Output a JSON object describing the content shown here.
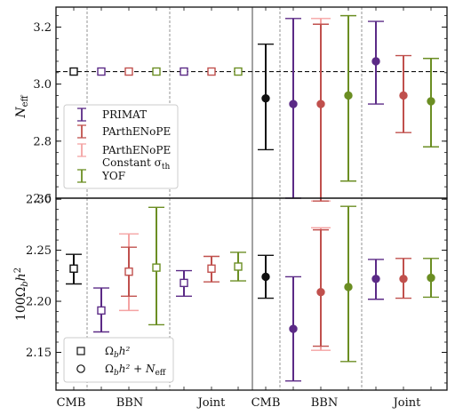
{
  "chart_data": [
    {
      "type": "errorbar",
      "panel": "top",
      "ylabel": "N_eff",
      "ylim": [
        2.6,
        3.27
      ],
      "yticks": [
        "2.6",
        "2.8",
        "3.0",
        "3.2"
      ],
      "reference_line": 3.044,
      "colors": {
        "CMB": "#111111",
        "PRIMAT": "#5b2a86",
        "PArthENoPE": "#c0504d",
        "PArthENoPE_const": "#f08080",
        "YOF": "#6b8e23"
      },
      "legend": {
        "position": "lower-left",
        "entries": [
          {
            "label": "PRIMAT",
            "color_key": "PRIMAT"
          },
          {
            "label": "PArthENoPE",
            "color_key": "PArthENoPE"
          },
          {
            "label": "PArthENoPE",
            "label2": "Constant σ",
            "label2_sub": "th",
            "color_key": "PArthENoPE_const"
          },
          {
            "label": "YOF",
            "color_key": "YOF"
          }
        ]
      },
      "series": [
        {
          "group": "CMB",
          "model": "CMB",
          "marker": "square-open",
          "y": 3.044,
          "err_low": 0,
          "err_high": 0
        },
        {
          "group": "BBN",
          "model": "PRIMAT",
          "marker": "square-open",
          "y": 3.044,
          "err_low": 0,
          "err_high": 0
        },
        {
          "group": "BBN",
          "model": "PArthENoPE",
          "marker": "square-open",
          "y": 3.044,
          "err_low": 0,
          "err_high": 0
        },
        {
          "group": "BBN",
          "model": "YOF",
          "marker": "square-open",
          "y": 3.044,
          "err_low": 0,
          "err_high": 0
        },
        {
          "group": "Joint",
          "model": "PRIMAT",
          "marker": "square-open",
          "y": 3.044,
          "err_low": 0,
          "err_high": 0
        },
        {
          "group": "Joint",
          "model": "PArthENoPE",
          "marker": "square-open",
          "y": 3.044,
          "err_low": 0,
          "err_high": 0
        },
        {
          "group": "Joint",
          "model": "YOF",
          "marker": "square-open",
          "y": 3.044,
          "err_low": 0,
          "err_high": 0
        },
        {
          "group": "CMB",
          "model": "CMB",
          "marker": "circle-filled",
          "y": 2.95,
          "err_low": 0.18,
          "err_high": 0.19
        },
        {
          "group": "BBN",
          "model": "PRIMAT",
          "marker": "circle-filled",
          "y": 2.93,
          "err_low": 0.33,
          "err_high": 0.3
        },
        {
          "group": "BBN",
          "model": "PArthENoPE",
          "marker": "circle-filled",
          "y": 2.93,
          "err_low": 0.34,
          "err_high": 0.28
        },
        {
          "group": "BBN",
          "model": "PArthENoPE_const",
          "marker": "none",
          "y": 2.93,
          "err_low": 0.34,
          "err_high": 0.3
        },
        {
          "group": "BBN",
          "model": "YOF",
          "marker": "circle-filled",
          "y": 2.96,
          "err_low": 0.3,
          "err_high": 0.28
        },
        {
          "group": "Joint",
          "model": "PRIMAT",
          "marker": "circle-filled",
          "y": 3.08,
          "err_low": 0.15,
          "err_high": 0.14
        },
        {
          "group": "Joint",
          "model": "PArthENoPE",
          "marker": "circle-filled",
          "y": 2.96,
          "err_low": 0.13,
          "err_high": 0.14
        },
        {
          "group": "Joint",
          "model": "YOF",
          "marker": "circle-filled",
          "y": 2.94,
          "err_low": 0.16,
          "err_high": 0.15
        }
      ]
    },
    {
      "type": "errorbar",
      "panel": "bottom",
      "ylabel": "100 Ω_b h^2",
      "ylim": [
        2.113,
        2.301
      ],
      "yticks": [
        "2.15",
        "2.20",
        "2.25",
        "2.30"
      ],
      "xticklabels": [
        "CMB",
        "BBN",
        "Joint",
        "CMB",
        "BBN",
        "Joint"
      ],
      "legend": {
        "position": "lower-left",
        "entries": [
          {
            "label": "Ω",
            "label_rest": "h²",
            "sub": "b",
            "marker": "square-open"
          },
          {
            "label": "Ω",
            "label_rest": "h² + N",
            "sub": "b",
            "sub2": "eff",
            "marker": "circle-open"
          }
        ]
      },
      "series": [
        {
          "group": "CMB",
          "model": "CMB",
          "marker": "square-open",
          "y": 2.232,
          "err_low": 0.015,
          "err_high": 0.014
        },
        {
          "group": "BBN",
          "model": "PRIMAT",
          "marker": "square-open",
          "y": 2.191,
          "err_low": 0.021,
          "err_high": 0.022
        },
        {
          "group": "BBN",
          "model": "PArthENoPE",
          "marker": "square-open",
          "y": 2.229,
          "err_low": 0.024,
          "err_high": 0.024
        },
        {
          "group": "BBN",
          "model": "PArthENoPE_const",
          "marker": "none",
          "y": 2.229,
          "err_low": 0.038,
          "err_high": 0.037
        },
        {
          "group": "BBN",
          "model": "YOF",
          "marker": "square-open",
          "y": 2.233,
          "err_low": 0.056,
          "err_high": 0.059
        },
        {
          "group": "Joint",
          "model": "PRIMAT",
          "marker": "square-open",
          "y": 2.218,
          "err_low": 0.013,
          "err_high": 0.012
        },
        {
          "group": "Joint",
          "model": "PArthENoPE",
          "marker": "square-open",
          "y": 2.232,
          "err_low": 0.013,
          "err_high": 0.012
        },
        {
          "group": "Joint",
          "model": "YOF",
          "marker": "square-open",
          "y": 2.234,
          "err_low": 0.014,
          "err_high": 0.014
        },
        {
          "group": "CMB",
          "model": "CMB",
          "marker": "circle-filled",
          "y": 2.224,
          "err_low": 0.021,
          "err_high": 0.021
        },
        {
          "group": "BBN",
          "model": "PRIMAT",
          "marker": "circle-filled",
          "y": 2.173,
          "err_low": 0.051,
          "err_high": 0.051
        },
        {
          "group": "BBN",
          "model": "PArthENoPE",
          "marker": "circle-filled",
          "y": 2.209,
          "err_low": 0.053,
          "err_high": 0.061
        },
        {
          "group": "BBN",
          "model": "PArthENoPE_const",
          "marker": "none",
          "y": 2.209,
          "err_low": 0.057,
          "err_high": 0.063
        },
        {
          "group": "BBN",
          "model": "YOF",
          "marker": "circle-filled",
          "y": 2.214,
          "err_low": 0.073,
          "err_high": 0.079
        },
        {
          "group": "Joint",
          "model": "PRIMAT",
          "marker": "circle-filled",
          "y": 2.222,
          "err_low": 0.02,
          "err_high": 0.019
        },
        {
          "group": "Joint",
          "model": "PArthENoPE",
          "marker": "circle-filled",
          "y": 2.222,
          "err_low": 0.019,
          "err_high": 0.02
        },
        {
          "group": "Joint",
          "model": "YOF",
          "marker": "circle-filled",
          "y": 2.223,
          "err_low": 0.019,
          "err_high": 0.019
        }
      ]
    }
  ]
}
